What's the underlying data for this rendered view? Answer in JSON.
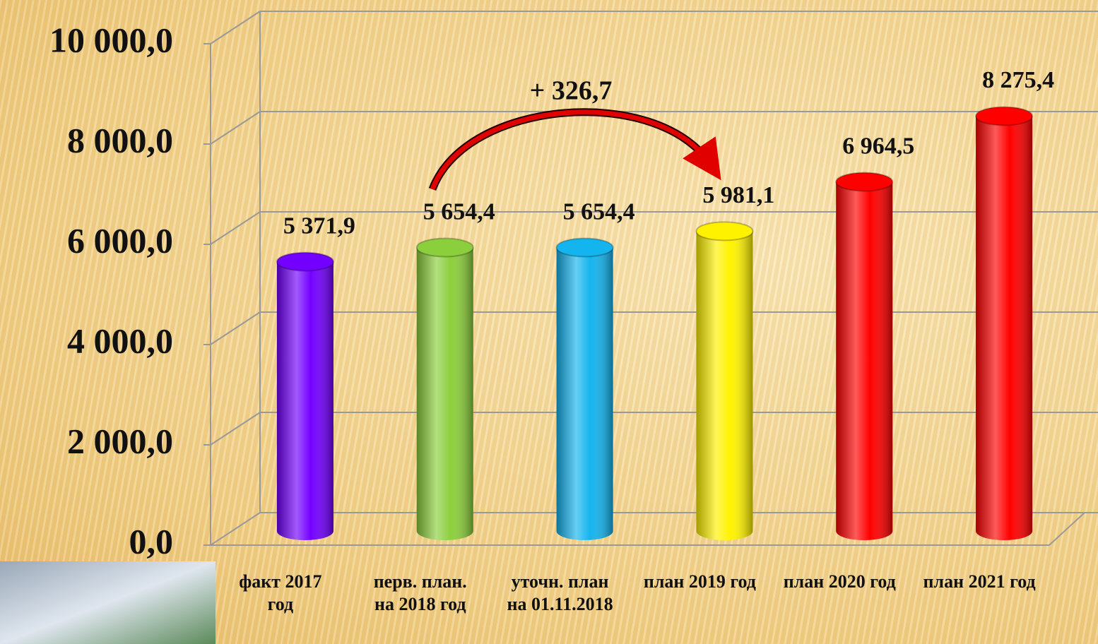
{
  "chart_data": {
    "type": "bar",
    "categories": [
      "факт 2017 год",
      "перв. план. на 2018 год",
      "уточн. план на 01.11.2018",
      "план 2019 год",
      "план 2020 год",
      "план 2021 год"
    ],
    "values": [
      5371.9,
      5654.4,
      5654.4,
      5981.1,
      6964.5,
      8275.4
    ],
    "value_labels": [
      "5 371,9",
      "5 654,4",
      "5 654,4",
      "5 981,1",
      "6 964,5",
      "8 275,4"
    ],
    "colors": [
      "#7300ff",
      "#8ccf3c",
      "#14b4ee",
      "#fff200",
      "#ff0000",
      "#ff0000"
    ],
    "ylim": [
      0,
      10000
    ],
    "yticks": [
      {
        "value": 0,
        "label": "0,0"
      },
      {
        "value": 2000,
        "label": "2 000,0"
      },
      {
        "value": 4000,
        "label": "4 000,0"
      },
      {
        "value": 6000,
        "label": "6 000,0"
      },
      {
        "value": 8000,
        "label": "8 000,0"
      },
      {
        "value": 10000,
        "label": "10 000,0"
      }
    ],
    "annotation": "+ 326,7",
    "grid": true
  }
}
